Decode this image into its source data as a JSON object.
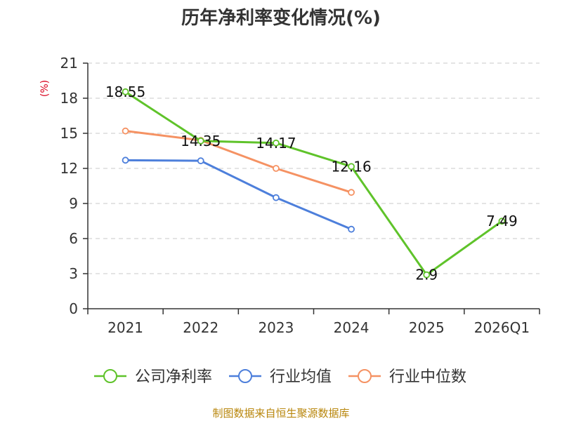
{
  "chart_data": {
    "type": "line",
    "title": "历年净利率变化情况(%)",
    "ylabel": "(%)",
    "xlabel": "",
    "categories": [
      "2021",
      "2022",
      "2023",
      "2024",
      "2025",
      "2026Q1"
    ],
    "ylim": [
      0,
      21
    ],
    "yticks": [
      0,
      3,
      6,
      9,
      12,
      15,
      18,
      21
    ],
    "grid": true,
    "legend": "bottom",
    "series": [
      {
        "name": "公司净利率",
        "color": "#5fc32a",
        "values": [
          18.55,
          14.35,
          14.17,
          12.16,
          2.9,
          7.49
        ],
        "labels": [
          "18.55",
          "14.35",
          "14.17",
          "12.16",
          "2.9",
          "7.49"
        ]
      },
      {
        "name": "行业均值",
        "color": "#4d7fdb",
        "values": [
          12.7,
          12.65,
          9.5,
          6.8,
          null,
          null
        ]
      },
      {
        "name": "行业中位数",
        "color": "#f59263",
        "values": [
          15.2,
          14.4,
          12.0,
          9.95,
          null,
          null
        ]
      }
    ]
  },
  "source": "制图数据来自恒生聚源数据库"
}
